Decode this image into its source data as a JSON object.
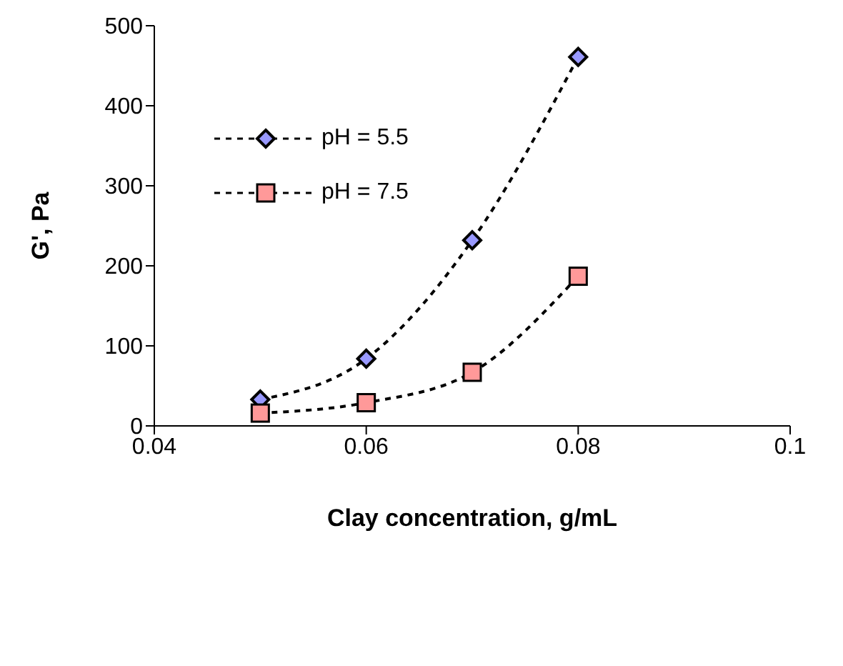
{
  "chart_data": {
    "type": "line",
    "xlabel": "Clay concentration, g/mL",
    "ylabel": "G', Pa",
    "x": [
      0.05,
      0.06,
      0.07,
      0.08
    ],
    "series": [
      {
        "name": "pH = 5.5",
        "color": "#9999ff",
        "marker": "diamond",
        "values": [
          33,
          84,
          232,
          461
        ]
      },
      {
        "name": "pH = 7.5",
        "color": "#ff9999",
        "marker": "square",
        "values": [
          16,
          29,
          67,
          187
        ]
      }
    ],
    "xlim": [
      0.04,
      0.1
    ],
    "xticks": [
      0.04,
      0.06,
      0.08,
      0.1
    ],
    "ylim": [
      0,
      500
    ],
    "yticks": [
      0,
      100,
      200,
      300,
      400,
      500
    ],
    "line_style": "dashed",
    "legend": "top left",
    "grid": false
  }
}
